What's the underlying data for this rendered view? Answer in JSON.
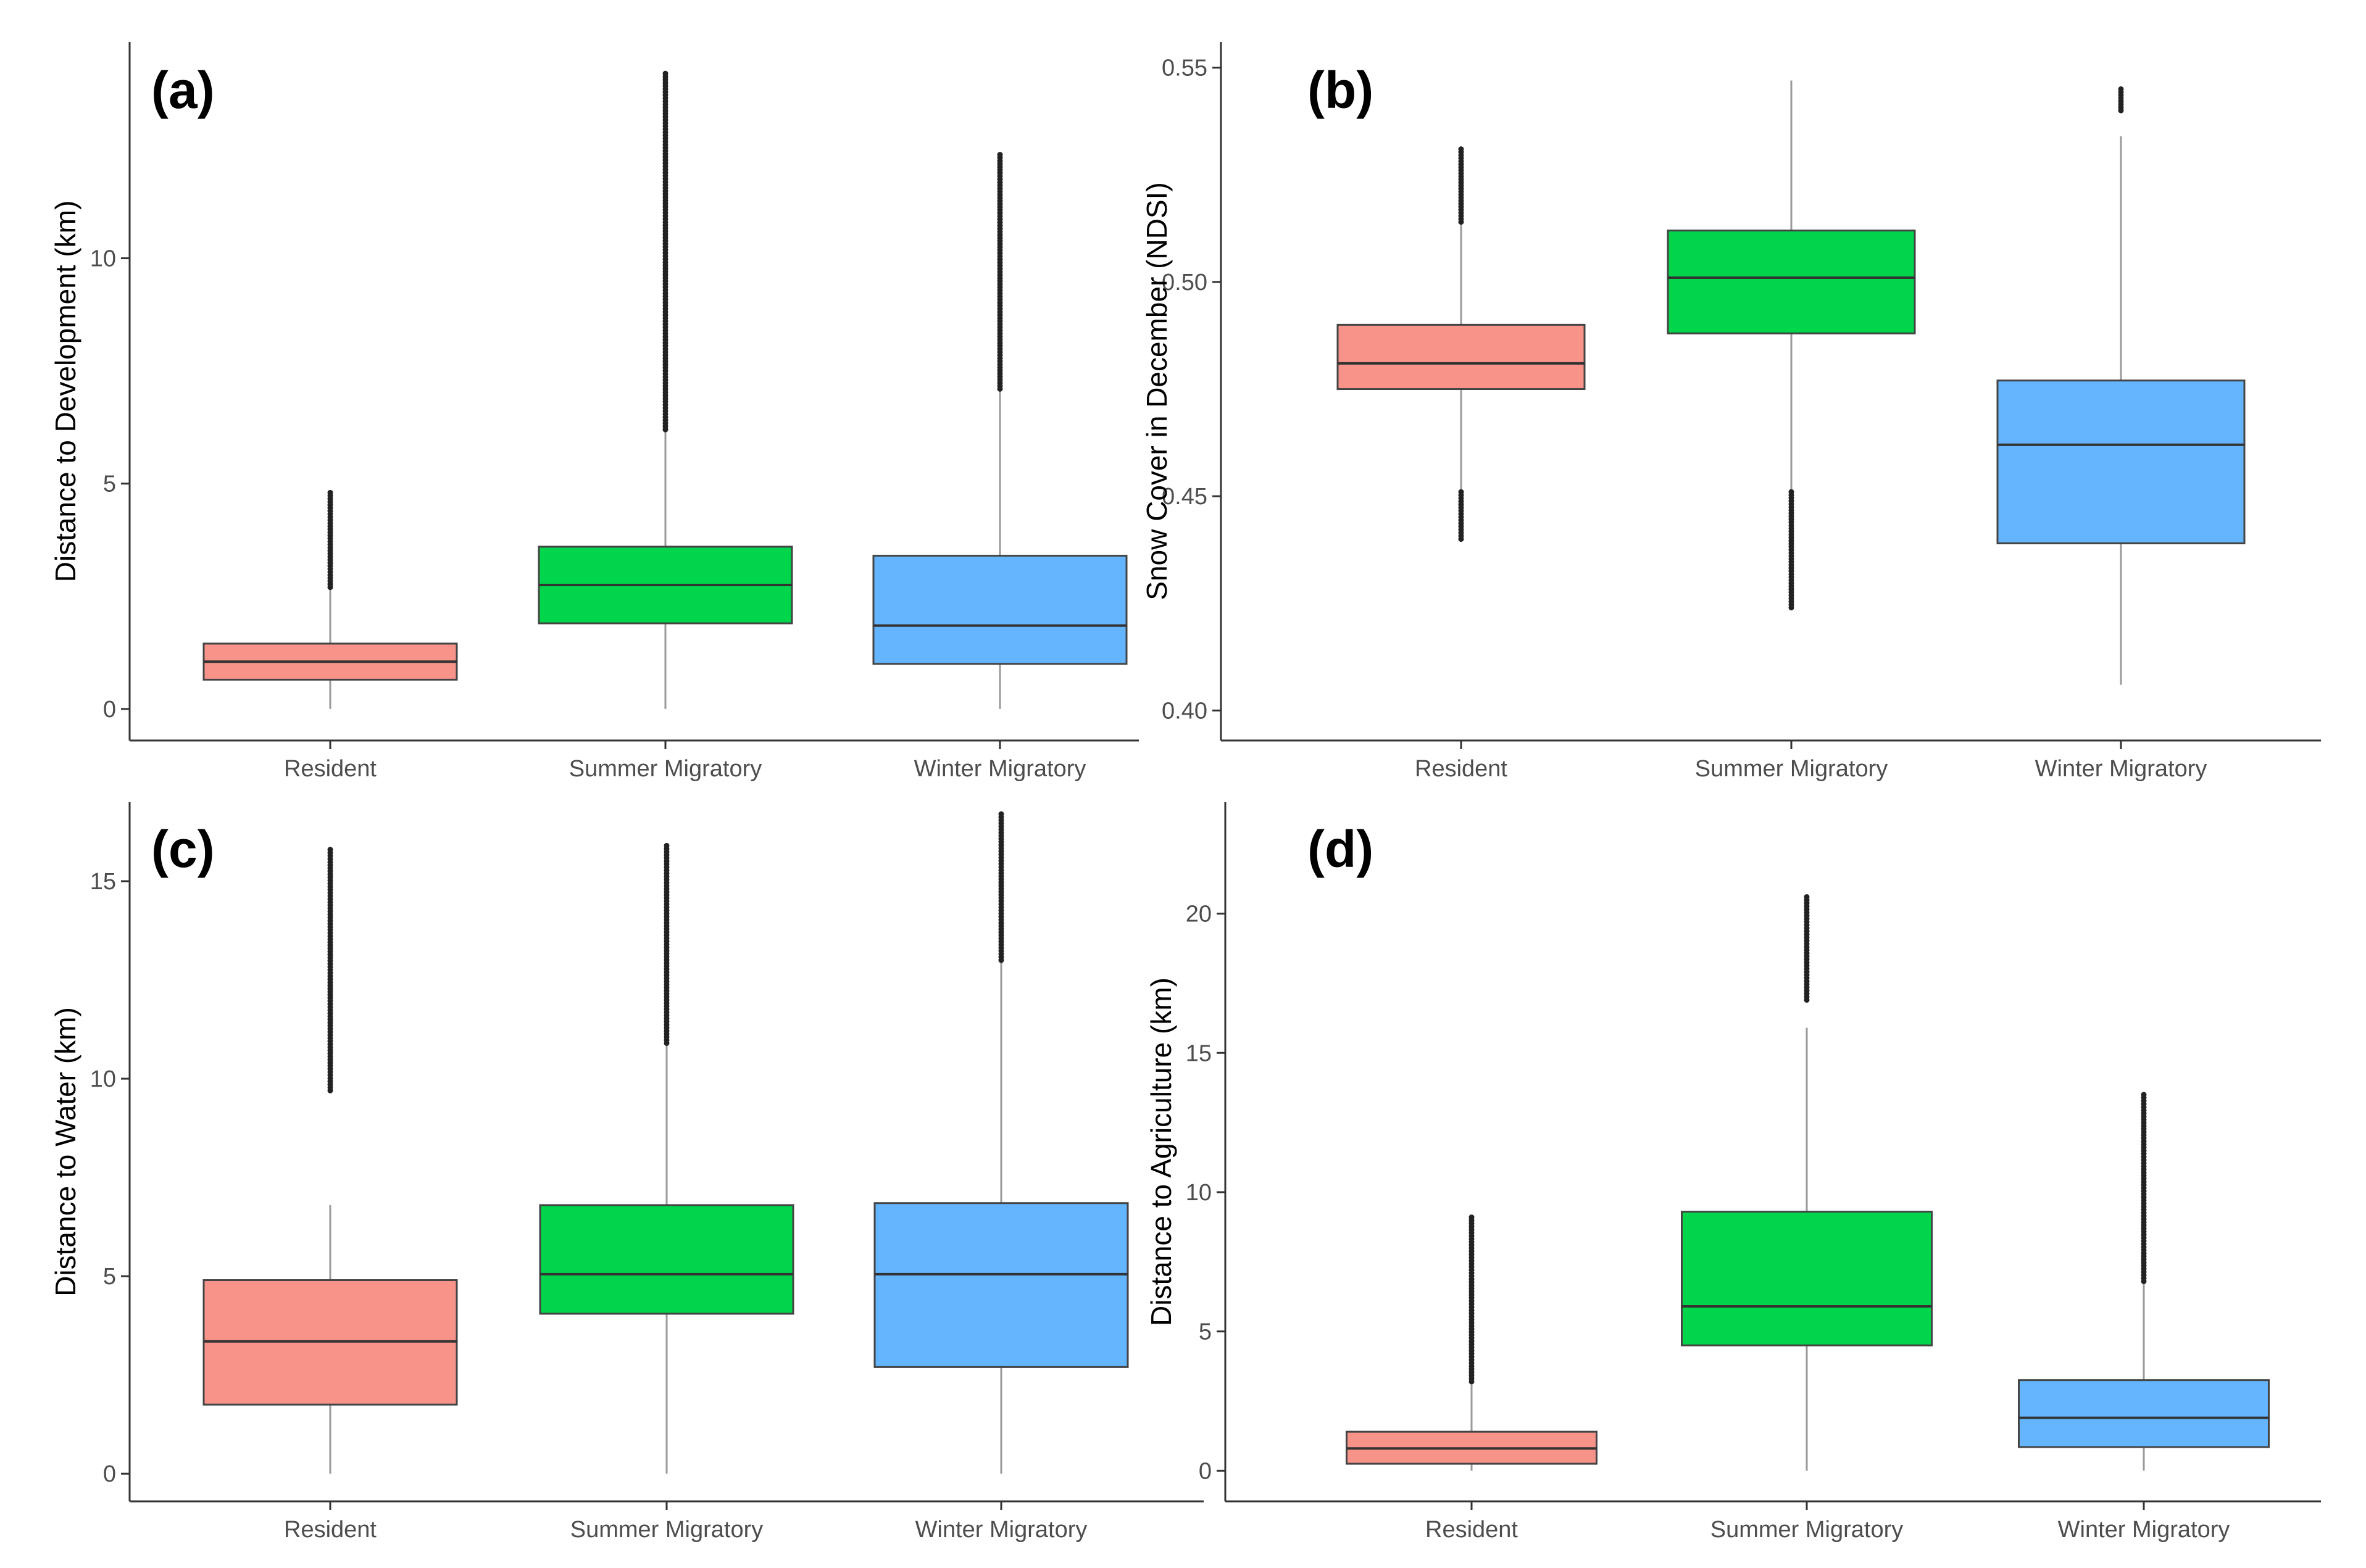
{
  "colors": {
    "Resident": "#F8938A",
    "Summer Migratory": "#00D54B",
    "Winter Migratory": "#64B5FD"
  },
  "chart_data": [
    {
      "type": "box",
      "panel": "(a)",
      "ylabel": "Distance to Development (km)",
      "ylim": [
        -0.7,
        14.8
      ],
      "yticks": [
        0,
        5,
        10
      ],
      "ytick_labels": [
        "0",
        "5",
        "10"
      ],
      "categories": [
        "Resident",
        "Summer Migratory",
        "Winter Migratory"
      ],
      "boxes": [
        {
          "min": 0.0,
          "q1": 0.65,
          "median": 1.05,
          "q3": 1.45,
          "whisker_high": 2.7,
          "outliers_from": 2.7,
          "outliers_to": 4.8
        },
        {
          "min": 0.0,
          "q1": 1.9,
          "median": 2.75,
          "q3": 3.6,
          "whisker_high": 6.2,
          "outliers_from": 6.2,
          "outliers_to": 14.1
        },
        {
          "min": 0.0,
          "q1": 1.0,
          "median": 1.85,
          "q3": 3.4,
          "whisker_high": 7.1,
          "outliers_from": 7.1,
          "outliers_to": 12.3
        }
      ]
    },
    {
      "type": "box",
      "panel": "(b)",
      "ylabel": "Snow Cover in December (NDSI)",
      "ylim": [
        0.393,
        0.556
      ],
      "yticks": [
        0.4,
        0.45,
        0.5,
        0.55
      ],
      "ytick_labels": [
        "0.40",
        "0.45",
        "0.50",
        "0.55"
      ],
      "categories": [
        "Resident",
        "Summer Migratory",
        "Winter Migratory"
      ],
      "boxes": [
        {
          "min": 0.451,
          "q1": 0.475,
          "median": 0.481,
          "q3": 0.49,
          "whisker_high": 0.514,
          "outliers_from": 0.514,
          "outliers_to": 0.531,
          "outliers_low_from": 0.44,
          "outliers_low_to": 0.451
        },
        {
          "min": 0.451,
          "q1": 0.488,
          "median": 0.501,
          "q3": 0.512,
          "whisker_high": 0.547,
          "outliers_low_from": 0.424,
          "outliers_low_to": 0.451
        },
        {
          "min": 0.406,
          "q1": 0.439,
          "median": 0.462,
          "q3": 0.477,
          "whisker_high": 0.534,
          "outliers_from": 0.54,
          "outliers_to": 0.545
        }
      ]
    },
    {
      "type": "box",
      "panel": "(c)",
      "ylabel": "Distance to Water (km)",
      "ylim": [
        -0.7,
        17.0
      ],
      "yticks": [
        0,
        5,
        10,
        15
      ],
      "ytick_labels": [
        "0",
        "5",
        "10",
        "15"
      ],
      "categories": [
        "Resident",
        "Summer Migratory",
        "Winter Migratory"
      ],
      "boxes": [
        {
          "min": 0.0,
          "q1": 1.75,
          "median": 3.35,
          "q3": 4.9,
          "whisker_high": 6.8,
          "outliers_from": 9.7,
          "outliers_to": 15.8
        },
        {
          "min": 0.0,
          "q1": 4.05,
          "median": 5.05,
          "q3": 6.8,
          "whisker_high": 10.9,
          "outliers_from": 10.9,
          "outliers_to": 15.9
        },
        {
          "min": 0.0,
          "q1": 2.7,
          "median": 5.05,
          "q3": 6.85,
          "whisker_high": 13.0,
          "outliers_from": 13.0,
          "outliers_to": 16.7
        }
      ]
    },
    {
      "type": "box",
      "panel": "(d)",
      "ylabel": "Distance to Agriculture (km)",
      "ylim": [
        -1.1,
        24.0
      ],
      "yticks": [
        0,
        5,
        10,
        15,
        20
      ],
      "ytick_labels": [
        "0",
        "5",
        "10",
        "15",
        "20"
      ],
      "categories": [
        "Resident",
        "Summer Migratory",
        "Winter Migratory"
      ],
      "boxes": [
        {
          "min": 0.0,
          "q1": 0.25,
          "median": 0.8,
          "q3": 1.4,
          "whisker_high": 3.2,
          "outliers_from": 3.2,
          "outliers_to": 9.1
        },
        {
          "min": 0.0,
          "q1": 4.5,
          "median": 5.9,
          "q3": 9.3,
          "whisker_high": 15.9,
          "outliers_from": 16.9,
          "outliers_to": 20.6
        },
        {
          "min": 0.0,
          "q1": 0.85,
          "median": 1.9,
          "q3": 3.25,
          "whisker_high": 6.8,
          "outliers_from": 6.8,
          "outliers_to": 13.5
        }
      ]
    }
  ]
}
